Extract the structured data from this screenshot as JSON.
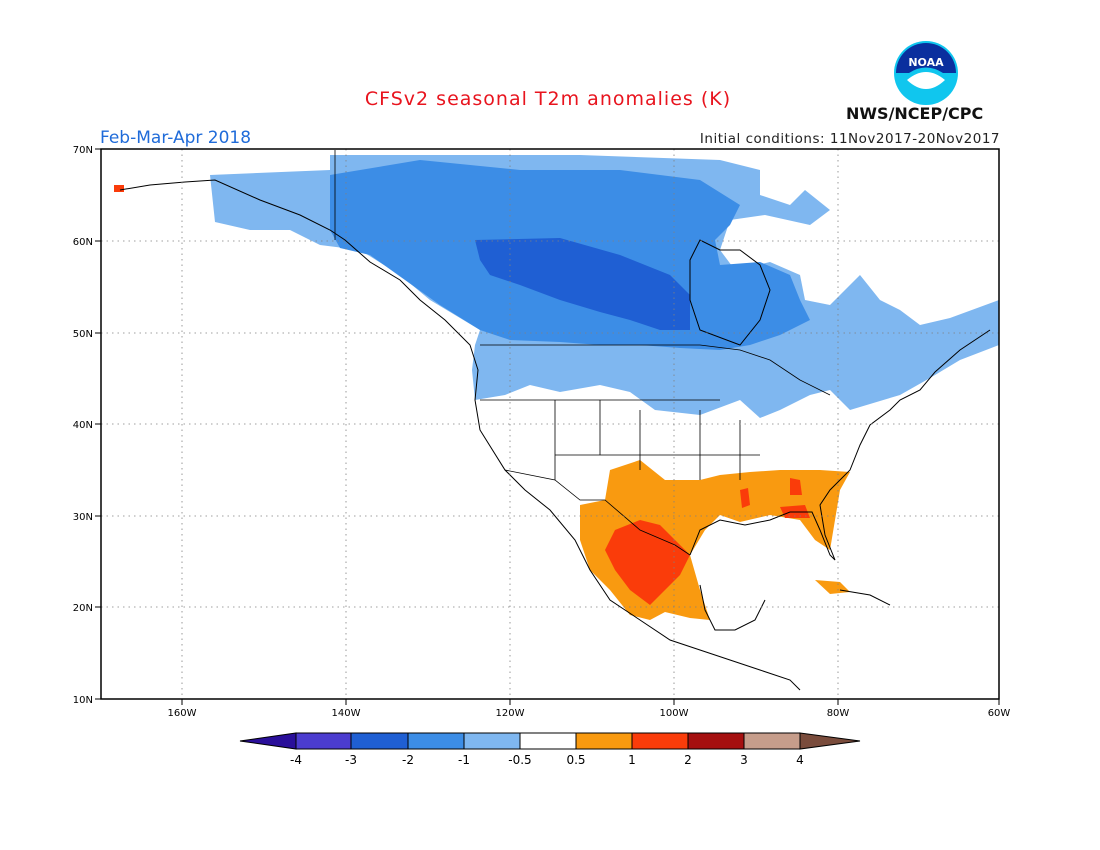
{
  "title": "CFSv2 seasonal T2m anomalies (K)",
  "period": "Feb-Mar-Apr 2018",
  "initial_conditions": "Initial conditions: 11Nov2017-20Nov2017",
  "agency": "NWS/NCEP/CPC",
  "logo_text": "NOAA",
  "map": {
    "lon_range": [
      -172,
      -60
    ],
    "lat_range": [
      10,
      70
    ],
    "lon_labels": [
      "160W",
      "140W",
      "120W",
      "100W",
      "80W",
      "60W"
    ],
    "lat_labels": [
      "10N",
      "20N",
      "30N",
      "40N",
      "50N",
      "60N",
      "70N"
    ]
  },
  "colorbar": {
    "labels": [
      "-4",
      "-3",
      "-2",
      "-1",
      "-0.5",
      "0.5",
      "1",
      "2",
      "3",
      "4"
    ],
    "colors": [
      "#2a0f9a",
      "#4b3ccf",
      "#1f5fd3",
      "#3c8de6",
      "#7fb7f0",
      "#ffffff",
      "#f99a10",
      "#fa3c0a",
      "#a51010",
      "#c69d8b",
      "#7a4c3c"
    ]
  },
  "anomaly_regions": {
    "light_blue": "#7fb7f0",
    "medium_blue": "#3c8de6",
    "dark_blue": "#1f5fd3",
    "orange": "#f99a10",
    "red": "#fa3c0a"
  }
}
